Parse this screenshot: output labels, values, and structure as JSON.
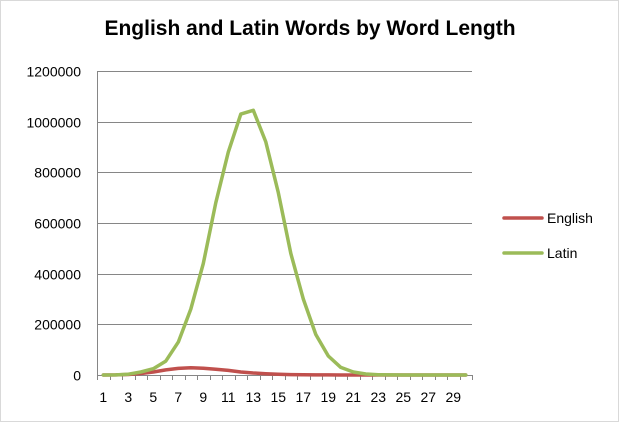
{
  "chart_data": {
    "type": "line",
    "title": "English and Latin Words by Word Length",
    "xlabel": "",
    "ylabel": "",
    "x": [
      1,
      2,
      3,
      4,
      5,
      6,
      7,
      8,
      9,
      10,
      11,
      12,
      13,
      14,
      15,
      16,
      17,
      18,
      19,
      20,
      21,
      22,
      23,
      24,
      25,
      26,
      27,
      28,
      29,
      30
    ],
    "x_tick_labels": [
      "1",
      "3",
      "5",
      "7",
      "9",
      "11",
      "13",
      "15",
      "17",
      "19",
      "21",
      "23",
      "25",
      "27",
      "29"
    ],
    "ylim": [
      0,
      1200000
    ],
    "y_ticks": [
      0,
      200000,
      400000,
      600000,
      800000,
      1000000,
      1200000
    ],
    "y_tick_labels": [
      "0",
      "200000",
      "400000",
      "600000",
      "800000",
      "1000000",
      "1200000"
    ],
    "grid": "horizontal",
    "legend_position": "right",
    "series": [
      {
        "name": "English",
        "color": "#c0504d",
        "values": [
          0,
          500,
          2000,
          6000,
          12000,
          20000,
          26000,
          29000,
          27000,
          23000,
          18000,
          12000,
          8000,
          5000,
          3000,
          1500,
          800,
          400,
          200,
          100,
          50,
          20,
          10,
          5,
          0,
          0,
          0,
          0,
          0,
          0
        ]
      },
      {
        "name": "Latin",
        "color": "#9bbb59",
        "values": [
          0,
          500,
          3000,
          12000,
          25000,
          55000,
          130000,
          260000,
          440000,
          680000,
          880000,
          1030000,
          1045000,
          920000,
          720000,
          480000,
          300000,
          160000,
          75000,
          30000,
          12000,
          4000,
          1000,
          300,
          100,
          0,
          0,
          0,
          0,
          0
        ]
      }
    ]
  }
}
